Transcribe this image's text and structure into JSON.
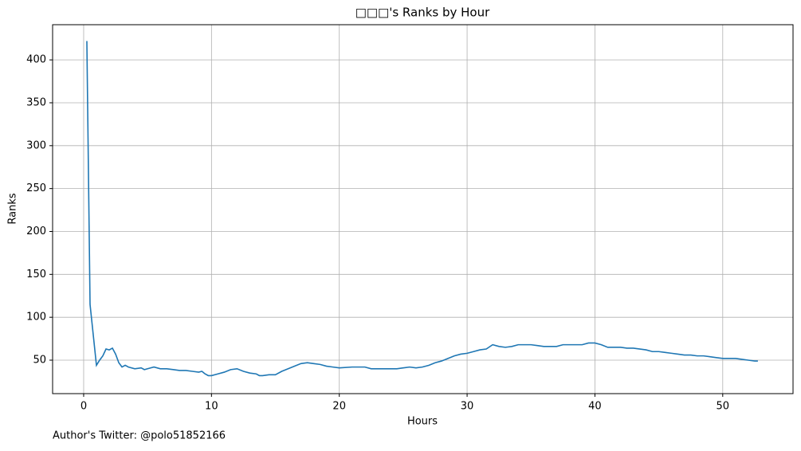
{
  "chart_data": {
    "type": "line",
    "title": "□□□'s Ranks by Hour",
    "x_label": "Hours",
    "y_label": "Ranks",
    "footer": "Author's Twitter: @polo51852166",
    "x": [
      0.25,
      0.5,
      1.0,
      1.25,
      1.5,
      1.75,
      2.0,
      2.25,
      2.5,
      2.75,
      3.0,
      3.25,
      3.5,
      4.0,
      4.5,
      4.75,
      5.0,
      5.5,
      6.0,
      6.5,
      7.0,
      7.5,
      8.0,
      8.5,
      9.0,
      9.25,
      9.5,
      9.75,
      10.0,
      10.5,
      11.0,
      11.5,
      12.0,
      12.5,
      13.0,
      13.5,
      13.75,
      14.0,
      14.5,
      15.0,
      15.5,
      16.0,
      16.5,
      17.0,
      17.5,
      18.0,
      18.5,
      19.0,
      19.5,
      20.0,
      21.0,
      22.0,
      22.5,
      23.0,
      24.0,
      24.5,
      25.0,
      25.5,
      26.0,
      26.5,
      27.0,
      27.5,
      28.0,
      28.5,
      29.0,
      29.5,
      30.0,
      30.5,
      31.0,
      31.5,
      32.0,
      32.5,
      33.0,
      33.5,
      34.0,
      35.0,
      35.5,
      36.0,
      37.0,
      37.5,
      38.0,
      39.0,
      39.5,
      40.0,
      40.5,
      41.0,
      42.0,
      42.5,
      43.0,
      44.0,
      44.5,
      45.0,
      45.5,
      46.0,
      46.5,
      47.0,
      47.5,
      48.0,
      48.5,
      49.0,
      49.5,
      50.0,
      51.0,
      51.5,
      52.0,
      52.5,
      52.75
    ],
    "series": [
      {
        "name": "Ranks",
        "color": "#1f77b4",
        "values": [
          422,
          115,
          44,
          50,
          55,
          63,
          62,
          64,
          57,
          47,
          42,
          44,
          42,
          40,
          41,
          39,
          40,
          42,
          40,
          40,
          39,
          38,
          38,
          37,
          36,
          37,
          34,
          32,
          32,
          34,
          36,
          39,
          40,
          37,
          35,
          34,
          32,
          32,
          33,
          33,
          37,
          40,
          43,
          46,
          47,
          46,
          45,
          43,
          42,
          41,
          42,
          42,
          40,
          40,
          40,
          40,
          41,
          42,
          41,
          42,
          44,
          47,
          49,
          52,
          55,
          57,
          58,
          60,
          62,
          63,
          68,
          66,
          65,
          66,
          68,
          68,
          67,
          66,
          66,
          68,
          68,
          68,
          70,
          70,
          68,
          65,
          65,
          64,
          64,
          62,
          60,
          60,
          59,
          58,
          57,
          56,
          56,
          55,
          55,
          54,
          53,
          52,
          52,
          51,
          50,
          49,
          49
        ]
      }
    ],
    "xlim": [
      -2.43,
      55.5
    ],
    "ylim": [
      11,
      441
    ],
    "xticks": [
      0,
      10,
      20,
      30,
      40,
      50
    ],
    "yticks": [
      50,
      100,
      150,
      200,
      250,
      300,
      350,
      400
    ],
    "grid": true
  }
}
